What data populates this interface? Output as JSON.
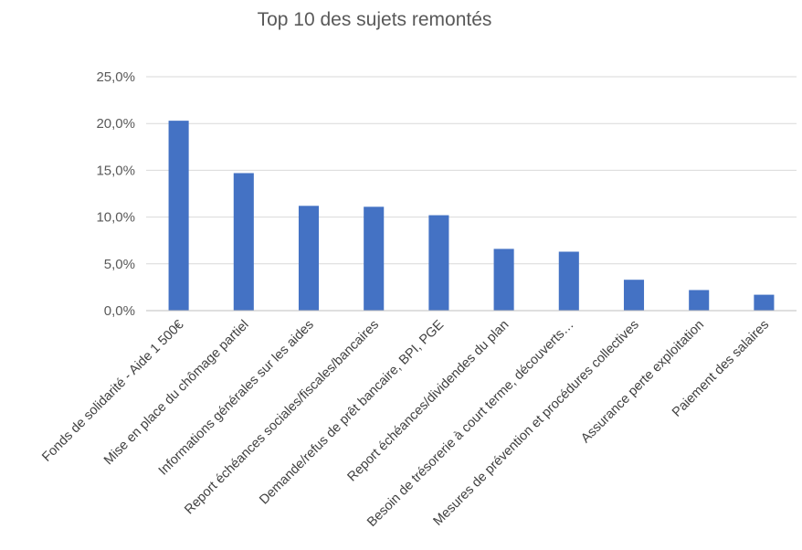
{
  "chart_data": {
    "type": "bar",
    "title": "Top 10 des sujets remontés",
    "categories": [
      "Fonds de solidarité - Aide 1 500€",
      "Mise en place du chômage partiel",
      "Informations générales sur les aides",
      "Report échéances sociales/fiscales/bancaires",
      "Demande/refus de prêt bancaire, BPI, PGE",
      "Report échéances/dividendes du plan",
      "Besoin de trésorerie à court terme, découverts…",
      "Mesures de prévention et procédures collectives",
      "Assurance perte exploitation",
      "Paiement des salaires"
    ],
    "values": [
      20.3,
      14.7,
      11.2,
      11.1,
      10.2,
      6.6,
      6.3,
      3.3,
      2.2,
      1.7
    ],
    "y_ticks": [
      "0,0%",
      "5,0%",
      "10,0%",
      "15,0%",
      "20,0%",
      "25,0%"
    ],
    "ylim": [
      0,
      25
    ],
    "grid": true,
    "legend": "none",
    "bar_color": "#4472C4"
  }
}
